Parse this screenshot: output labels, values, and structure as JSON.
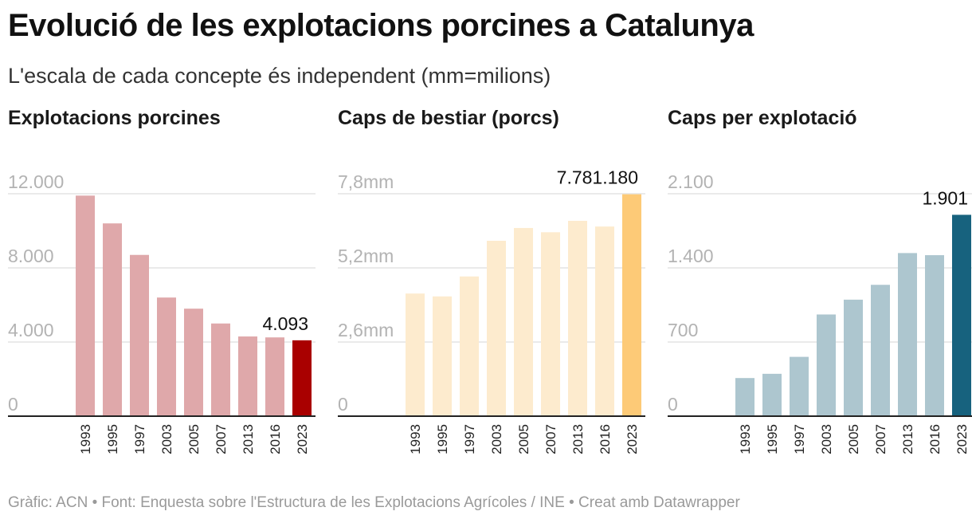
{
  "title": "Evolució de les explotacions porcines a Catalunya",
  "subtitle": "L'escala de cada concepte és independent (mm=milions)",
  "footer": "Gràfic: ACN • Font: Enquesta sobre l'Estructura de les Explotacions Agrícoles / INE • Creat amb Datawrapper",
  "chart_data": [
    {
      "type": "bar",
      "title": "Explotacions porcines",
      "categories": [
        "1993",
        "1995",
        "1997",
        "2003",
        "2005",
        "2007",
        "2013",
        "2016",
        "2023"
      ],
      "values": [
        11900,
        10400,
        8700,
        6400,
        5800,
        5000,
        4300,
        4250,
        4093
      ],
      "ylim": [
        0,
        12000
      ],
      "yticks": [
        0,
        4000,
        8000,
        12000
      ],
      "ytick_labels": [
        "0",
        "4.000",
        "8.000",
        "12.000"
      ],
      "annotation": "4.093",
      "grid": true,
      "bar_color": "#dfa8aa",
      "highlight_color": "#a90000"
    },
    {
      "type": "bar",
      "title": "Caps de bestiar (porcs)",
      "categories": [
        "1993",
        "1995",
        "1997",
        "2003",
        "2005",
        "2007",
        "2013",
        "2016",
        "2023"
      ],
      "values": [
        4300000,
        4200000,
        4900000,
        6150000,
        6600000,
        6450000,
        6850000,
        6650000,
        7781180
      ],
      "ylim": [
        0,
        7800000
      ],
      "yticks": [
        0,
        2600000,
        5200000,
        7800000
      ],
      "ytick_labels": [
        "0",
        "2,6mm",
        "5,2mm",
        "7,8mm"
      ],
      "annotation": "7.781.180",
      "grid": true,
      "bar_color": "#fdebce",
      "highlight_color": "#fdca77"
    },
    {
      "type": "bar",
      "title": "Caps per explotació",
      "categories": [
        "1993",
        "1995",
        "1997",
        "2003",
        "2005",
        "2007",
        "2013",
        "2016",
        "2023"
      ],
      "values": [
        360,
        400,
        560,
        960,
        1100,
        1240,
        1540,
        1520,
        1901
      ],
      "ylim": [
        0,
        2100
      ],
      "yticks": [
        0,
        700,
        1400,
        2100
      ],
      "ytick_labels": [
        "0",
        "700",
        "1.400",
        "2.100"
      ],
      "annotation": "1.901",
      "grid": true,
      "bar_color": "#adc6cf",
      "highlight_color": "#17627e"
    }
  ]
}
